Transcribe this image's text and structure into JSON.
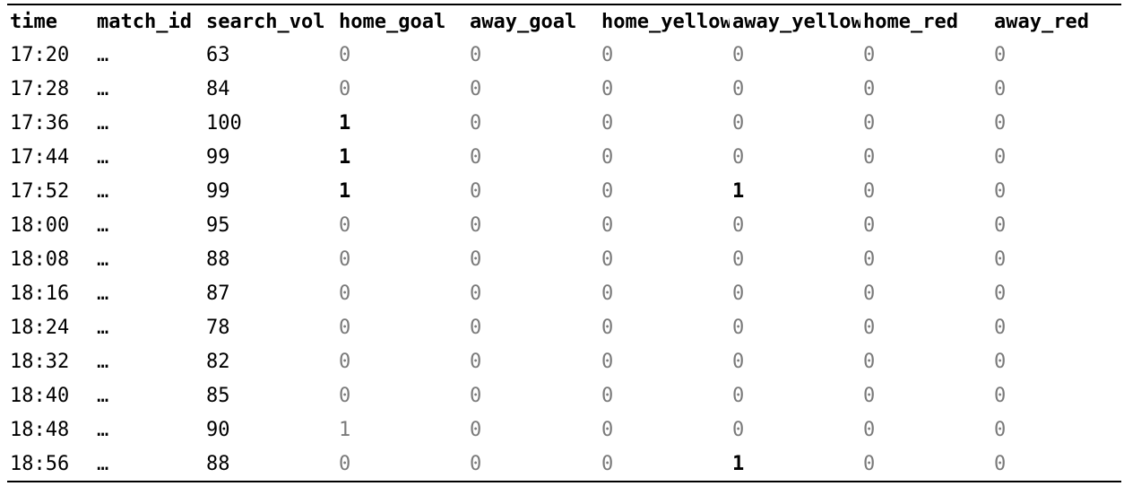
{
  "table": {
    "columns": [
      "time",
      "match_id",
      "search_vol",
      "home_goal",
      "away_goal",
      "home_yellow",
      "away_yellow",
      "home_red",
      "away_red"
    ],
    "rows": [
      {
        "time": "17:20",
        "match_id": "…",
        "search_vol": "63",
        "home_goal": "0",
        "away_goal": "0",
        "home_yellow": "0",
        "away_yellow": "0",
        "home_red": "0",
        "away_red": "0"
      },
      {
        "time": "17:28",
        "match_id": "…",
        "search_vol": "84",
        "home_goal": "0",
        "away_goal": "0",
        "home_yellow": "0",
        "away_yellow": "0",
        "home_red": "0",
        "away_red": "0"
      },
      {
        "time": "17:36",
        "match_id": "…",
        "search_vol": "100",
        "home_goal": "1",
        "away_goal": "0",
        "home_yellow": "0",
        "away_yellow": "0",
        "home_red": "0",
        "away_red": "0"
      },
      {
        "time": "17:44",
        "match_id": "…",
        "search_vol": "99",
        "home_goal": "1",
        "away_goal": "0",
        "home_yellow": "0",
        "away_yellow": "0",
        "home_red": "0",
        "away_red": "0"
      },
      {
        "time": "17:52",
        "match_id": "…",
        "search_vol": "99",
        "home_goal": "1",
        "away_goal": "0",
        "home_yellow": "0",
        "away_yellow": "1",
        "home_red": "0",
        "away_red": "0"
      },
      {
        "time": "18:00",
        "match_id": "…",
        "search_vol": "95",
        "home_goal": "0",
        "away_goal": "0",
        "home_yellow": "0",
        "away_yellow": "0",
        "home_red": "0",
        "away_red": "0"
      },
      {
        "time": "18:08",
        "match_id": "…",
        "search_vol": "88",
        "home_goal": "0",
        "away_goal": "0",
        "home_yellow": "0",
        "away_yellow": "0",
        "home_red": "0",
        "away_red": "0"
      },
      {
        "time": "18:16",
        "match_id": "…",
        "search_vol": "87",
        "home_goal": "0",
        "away_goal": "0",
        "home_yellow": "0",
        "away_yellow": "0",
        "home_red": "0",
        "away_red": "0"
      },
      {
        "time": "18:24",
        "match_id": "…",
        "search_vol": "78",
        "home_goal": "0",
        "away_goal": "0",
        "home_yellow": "0",
        "away_yellow": "0",
        "home_red": "0",
        "away_red": "0"
      },
      {
        "time": "18:32",
        "match_id": "…",
        "search_vol": "82",
        "home_goal": "0",
        "away_goal": "0",
        "home_yellow": "0",
        "away_yellow": "0",
        "home_red": "0",
        "away_red": "0"
      },
      {
        "time": "18:40",
        "match_id": "…",
        "search_vol": "85",
        "home_goal": "0",
        "away_goal": "0",
        "home_yellow": "0",
        "away_yellow": "0",
        "home_red": "0",
        "away_red": "0"
      },
      {
        "time": "18:48",
        "match_id": "…",
        "search_vol": "90",
        "home_goal": "1",
        "away_goal": "0",
        "home_yellow": "0",
        "away_yellow": "0",
        "home_red": "0",
        "away_red": "0"
      },
      {
        "time": "18:56",
        "match_id": "…",
        "search_vol": "88",
        "home_goal": "0",
        "away_goal": "0",
        "home_yellow": "0",
        "away_yellow": "1",
        "home_red": "0",
        "away_red": "0"
      }
    ],
    "emphasis": {
      "2": [
        "home_goal"
      ],
      "3": [
        "home_goal"
      ],
      "4": [
        "home_goal",
        "away_yellow"
      ],
      "12": [
        "away_yellow"
      ]
    }
  }
}
